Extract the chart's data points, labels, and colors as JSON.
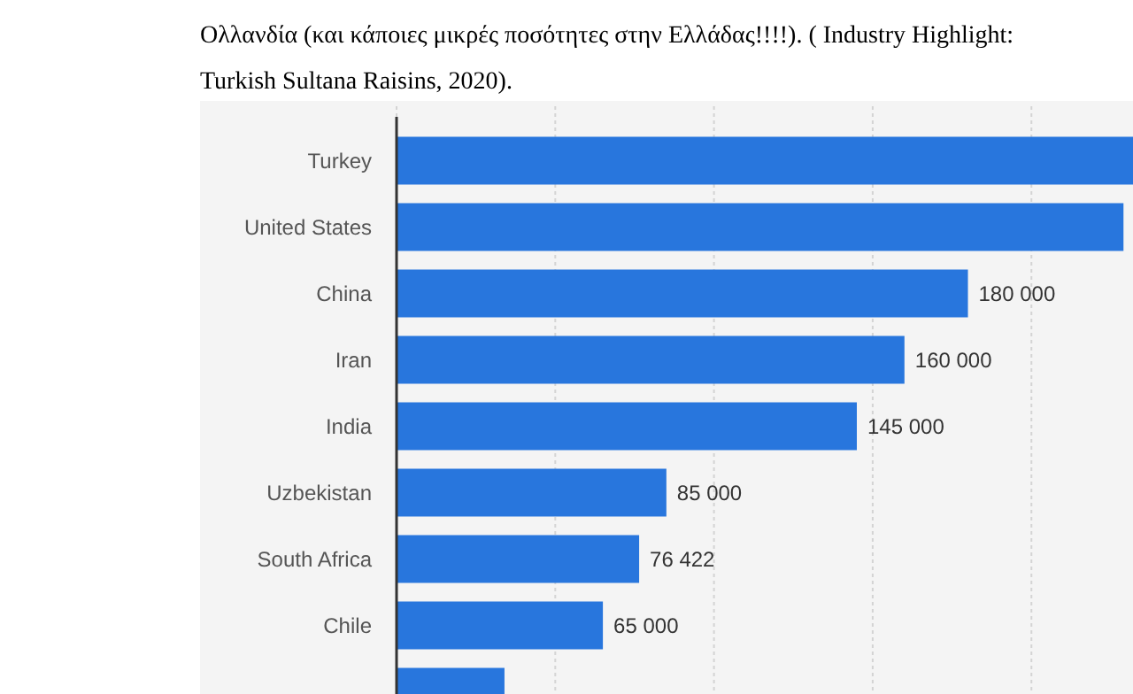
{
  "chart_data": {
    "type": "bar",
    "orientation": "horizontal",
    "annotations": [
      "Ολλανδία (και κάποιες μικρές ποσότητες στην Ελλάδας!!!!). ( Industry Highlight: Turkish Sultana Raisins, 2020)."
    ],
    "categories": [
      "Turkey",
      "United States",
      "China",
      "Iran",
      "India",
      "Uzbekistan",
      "South Africa",
      "Chile",
      null
    ],
    "values": [
      232000,
      229000,
      180000,
      160000,
      145000,
      85000,
      76422,
      65000,
      34000
    ],
    "value_labels": [
      null,
      null,
      "180 000",
      "160 000",
      "145 000",
      "85 000",
      "76 422",
      "65 000",
      null
    ],
    "color": "#2876dd",
    "xlim": [
      0,
      232000
    ],
    "xticks": [
      {
        "value": 0,
        "label": null
      },
      {
        "value": 50000,
        "label": null
      },
      {
        "value": 100000,
        "label": null
      },
      {
        "value": 150000,
        "label": null
      },
      {
        "value": 200000,
        "label": null
      }
    ],
    "grid": "x"
  }
}
